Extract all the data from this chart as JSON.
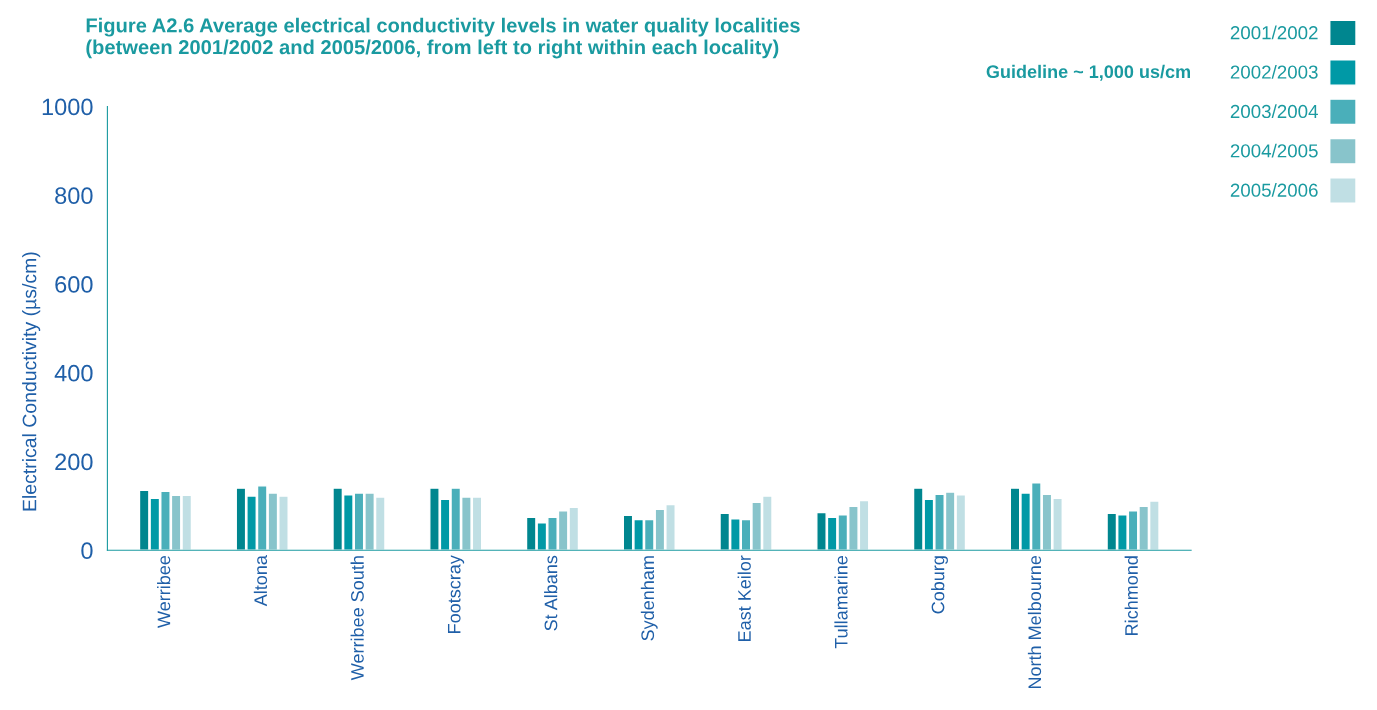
{
  "chart_data": {
    "type": "bar",
    "title": "Figure A2.6 Average electrical conductivity levels in water quality localities\n(between 2001/2002 and 2005/2006, from left to right within each locality)",
    "ylabel": "Electrical Conductivity (µs/cm)",
    "annotations": [
      "Guideline ~ 1,000 us/cm"
    ],
    "categories": [
      "Werribee",
      "Altona",
      "Werribee South",
      "Footscray",
      "St Albans",
      "Sydenham",
      "East Keilor",
      "Tullamarine",
      "Coburg",
      "North Melbourne",
      "Richmond"
    ],
    "series": [
      {
        "name": "2001/2002",
        "color": "#00868f",
        "values": [
          135,
          140,
          140,
          140,
          74,
          79,
          83,
          85,
          140,
          140,
          83
        ]
      },
      {
        "name": "2002/2003",
        "color": "#0099a6",
        "values": [
          117,
          122,
          125,
          115,
          62,
          69,
          71,
          74,
          115,
          129,
          80
        ]
      },
      {
        "name": "2003/2004",
        "color": "#4aafba",
        "values": [
          133,
          145,
          129,
          140,
          74,
          69,
          69,
          80,
          126,
          152,
          89
        ]
      },
      {
        "name": "2004/2005",
        "color": "#88c4cb",
        "values": [
          124,
          129,
          129,
          120,
          89,
          92,
          108,
          99,
          131,
          126,
          99
        ]
      },
      {
        "name": "2005/2006",
        "color": "#c0dfe4",
        "values": [
          124,
          122,
          120,
          120,
          97,
          103,
          122,
          112,
          125,
          117,
          111
        ]
      }
    ],
    "ylim": [
      0,
      1000
    ],
    "yticks": [
      0,
      200,
      400,
      600,
      800,
      1000
    ],
    "grid": false,
    "legend": "top right"
  }
}
